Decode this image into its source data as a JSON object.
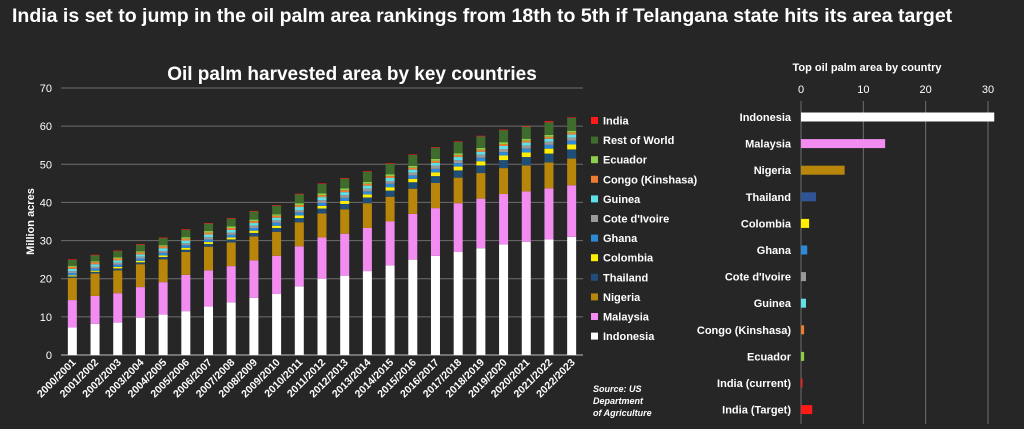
{
  "headline": "India is set to jump in the oil palm area rankings from 18th to 5th if Telangana state hits its area target",
  "chart_data": [
    {
      "type": "bar",
      "stacked": true,
      "title": "Oil palm harvested area by key countries",
      "ylabel": "Million acres",
      "xlabel": "",
      "ylim": [
        0,
        70
      ],
      "yticks": [
        0,
        10,
        20,
        30,
        40,
        50,
        60,
        70
      ],
      "grid": true,
      "legend_position": "right",
      "source": "Source: US Department of Agriculture",
      "categories": [
        "2000/2001",
        "2001/2002",
        "2002/2003",
        "2003/2004",
        "2004/2005",
        "2005/2006",
        "2006/2007",
        "2007/2008",
        "2008/2009",
        "2009/2010",
        "2010/2011",
        "2011/2012",
        "2012/2013",
        "2013/2014",
        "2014/2015",
        "2015/2016",
        "2016/2017",
        "2017/2018",
        "2018/2019",
        "2019/2020",
        "2020/2021",
        "2021/2022",
        "2022/2023"
      ],
      "series": [
        {
          "name": "Indonesia",
          "color": "#ffffff",
          "values": [
            7.2,
            8.2,
            8.5,
            9.8,
            10.6,
            11.5,
            12.7,
            13.8,
            15.0,
            16.0,
            18.0,
            20.0,
            20.8,
            22.0,
            23.5,
            25.0,
            26.0,
            27.0,
            28.0,
            29.0,
            29.7,
            30.3,
            31.0
          ]
        },
        {
          "name": "Malaysia",
          "color": "#f28cf0",
          "values": [
            7.2,
            7.3,
            7.7,
            8.0,
            8.5,
            9.5,
            9.5,
            9.5,
            9.8,
            10.0,
            10.5,
            10.8,
            11.0,
            11.3,
            11.5,
            12.0,
            12.5,
            12.8,
            13.0,
            13.2,
            13.2,
            13.4,
            13.5
          ]
        },
        {
          "name": "Nigeria",
          "color": "#b8860b",
          "values": [
            5.8,
            5.9,
            6.0,
            6.0,
            6.0,
            6.0,
            6.2,
            6.2,
            6.3,
            6.3,
            6.3,
            6.3,
            6.4,
            6.5,
            6.5,
            6.6,
            6.6,
            6.7,
            6.7,
            6.8,
            6.8,
            6.8,
            7.0
          ]
        },
        {
          "name": "Thailand",
          "color": "#1f4e79",
          "values": [
            0.4,
            0.4,
            0.5,
            0.5,
            0.6,
            0.6,
            0.7,
            0.8,
            0.9,
            1.0,
            1.1,
            1.3,
            1.4,
            1.5,
            1.6,
            1.7,
            1.8,
            1.9,
            2.0,
            2.1,
            2.2,
            2.3,
            2.4
          ]
        },
        {
          "name": "Colombia",
          "color": "#ffee00",
          "values": [
            0.3,
            0.3,
            0.4,
            0.4,
            0.4,
            0.5,
            0.5,
            0.5,
            0.6,
            0.6,
            0.7,
            0.7,
            0.8,
            0.8,
            0.9,
            0.9,
            1.0,
            1.0,
            1.1,
            1.2,
            1.2,
            1.3,
            1.3
          ]
        },
        {
          "name": "Ghana",
          "color": "#2f89d9",
          "values": [
            0.6,
            0.6,
            0.6,
            0.6,
            0.7,
            0.7,
            0.7,
            0.7,
            0.7,
            0.8,
            0.8,
            0.8,
            0.8,
            0.8,
            0.9,
            0.9,
            0.9,
            0.9,
            0.9,
            0.9,
            1.0,
            1.0,
            1.0
          ]
        },
        {
          "name": "Cote d'Ivoire",
          "color": "#9a9a9a",
          "values": [
            0.5,
            0.5,
            0.5,
            0.5,
            0.5,
            0.5,
            0.6,
            0.6,
            0.6,
            0.6,
            0.6,
            0.7,
            0.7,
            0.7,
            0.7,
            0.7,
            0.8,
            0.8,
            0.8,
            0.8,
            0.8,
            0.8,
            0.8
          ]
        },
        {
          "name": "Guinea",
          "color": "#5ee0e6",
          "values": [
            0.6,
            0.6,
            0.6,
            0.6,
            0.7,
            0.7,
            0.7,
            0.7,
            0.7,
            0.7,
            0.8,
            0.8,
            0.8,
            0.8,
            0.8,
            0.8,
            0.8,
            0.8,
            0.8,
            0.8,
            0.8,
            0.8,
            0.8
          ]
        },
        {
          "name": "Congo (Kinshasa)",
          "color": "#ed7d31",
          "values": [
            0.5,
            0.5,
            0.5,
            0.5,
            0.5,
            0.5,
            0.5,
            0.5,
            0.5,
            0.5,
            0.5,
            0.5,
            0.5,
            0.5,
            0.5,
            0.5,
            0.5,
            0.5,
            0.5,
            0.5,
            0.5,
            0.5,
            0.5
          ]
        },
        {
          "name": "Ecuador",
          "color": "#8fce4a",
          "values": [
            0.3,
            0.3,
            0.3,
            0.3,
            0.3,
            0.4,
            0.4,
            0.4,
            0.4,
            0.4,
            0.5,
            0.5,
            0.5,
            0.5,
            0.5,
            0.5,
            0.5,
            0.5,
            0.5,
            0.5,
            0.5,
            0.5,
            0.5
          ]
        },
        {
          "name": "Rest of World",
          "color": "#3f6b2c",
          "values": [
            1.6,
            1.6,
            1.7,
            1.8,
            1.9,
            2.0,
            2.0,
            2.1,
            2.2,
            2.3,
            2.4,
            2.5,
            2.6,
            2.7,
            2.8,
            2.9,
            3.0,
            3.0,
            3.1,
            3.2,
            3.2,
            3.3,
            3.4
          ]
        },
        {
          "name": "India",
          "color": "#ff1a1a",
          "values": [
            0.08,
            0.08,
            0.08,
            0.08,
            0.08,
            0.08,
            0.08,
            0.08,
            0.08,
            0.08,
            0.08,
            0.08,
            0.08,
            0.08,
            0.08,
            0.08,
            0.08,
            0.08,
            0.08,
            0.08,
            0.08,
            0.3,
            0.1
          ]
        }
      ],
      "legend": [
        "India",
        "Rest of World",
        "Ecuador",
        "Congo (Kinshasa)",
        "Guinea",
        "Cote d'Ivoire",
        "Ghana",
        "Colombia",
        "Thailand",
        "Nigeria",
        "Malaysia",
        "Indonesia"
      ]
    },
    {
      "type": "bar",
      "orientation": "horizontal",
      "title": "Top oil palm area by country",
      "xlim": [
        0,
        31
      ],
      "xticks": [
        0,
        10,
        20,
        30
      ],
      "categories": [
        "Indonesia",
        "Malaysia",
        "Nigeria",
        "Thailand",
        "Colombia",
        "Ghana",
        "Cote d'Ivoire",
        "Guinea",
        "Congo (Kinshasa)",
        "Ecuador",
        "India (current)",
        "India (Target)"
      ],
      "values": [
        31.0,
        13.5,
        7.0,
        2.4,
        1.3,
        1.0,
        0.8,
        0.8,
        0.5,
        0.5,
        0.1,
        1.8
      ],
      "colors": [
        "#ffffff",
        "#f28cf0",
        "#b8860b",
        "#2f5597",
        "#ffee00",
        "#2f89d9",
        "#9a9a9a",
        "#5ee0e6",
        "#ed7d31",
        "#8fce4a",
        "#ff1a1a",
        "#ff1a1a"
      ]
    }
  ]
}
